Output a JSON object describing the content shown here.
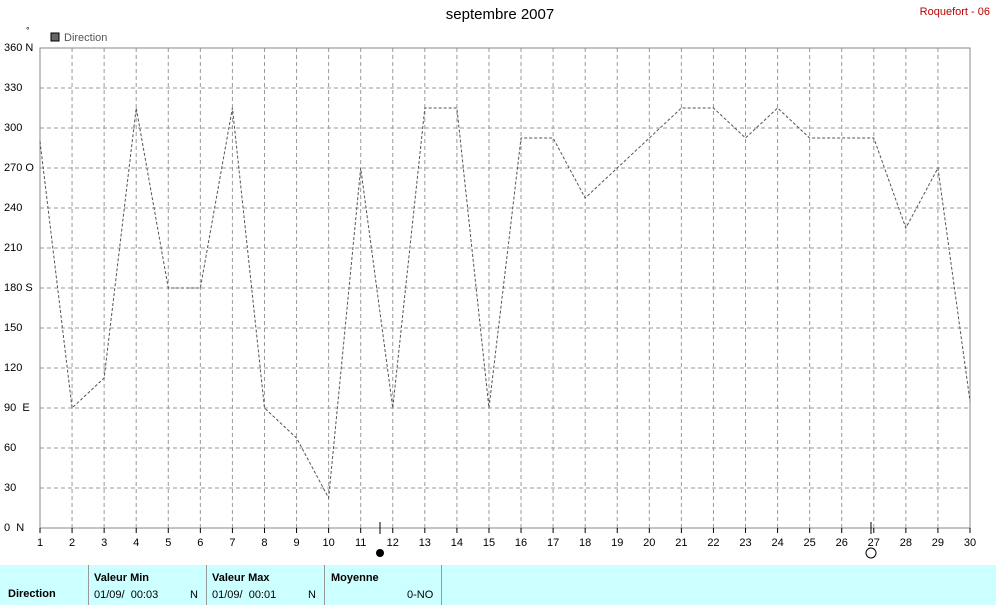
{
  "chart_data": {
    "type": "line",
    "title": "septembre 2007",
    "station": "Roquefort - 06",
    "unit_label": "°",
    "x": [
      1,
      2,
      3,
      4,
      5,
      6,
      7,
      8,
      9,
      10,
      11,
      12,
      13,
      14,
      15,
      16,
      17,
      18,
      19,
      20,
      21,
      22,
      23,
      24,
      25,
      26,
      27,
      28,
      29,
      30
    ],
    "xlim": [
      1,
      30
    ],
    "xticks": [
      1,
      2,
      3,
      4,
      5,
      6,
      7,
      8,
      9,
      10,
      11,
      12,
      13,
      14,
      15,
      16,
      17,
      18,
      19,
      20,
      21,
      22,
      23,
      24,
      25,
      26,
      27,
      28,
      29,
      30
    ],
    "ylim": [
      0,
      360
    ],
    "yticks": [
      {
        "value": 0,
        "label": "0  N"
      },
      30,
      60,
      {
        "value": 90,
        "label": "90  E"
      },
      120,
      150,
      {
        "value": 180,
        "label": "180 S"
      },
      210,
      240,
      {
        "value": 270,
        "label": "270 O"
      },
      300,
      330,
      {
        "value": 360,
        "label": "360 N"
      }
    ],
    "grid": true,
    "series": [
      {
        "name": "Direction",
        "color": "#555555",
        "values": [
          290,
          90,
          112.5,
          315,
          180,
          180,
          315,
          90,
          67.5,
          22.5,
          270,
          90,
          315,
          315,
          90,
          292.5,
          292.5,
          247.5,
          270,
          292.5,
          315,
          315,
          292.5,
          315,
          292.5,
          292.5,
          292.5,
          225,
          270,
          95
        ]
      }
    ]
  },
  "summary": {
    "row_label": "Direction",
    "min": {
      "title": "Valeur Min",
      "time": "01/09/  00:03",
      "dir": "N"
    },
    "max": {
      "title": "Valeur Max",
      "time": "01/09/  00:01",
      "dir": "N"
    },
    "mean": {
      "title": "Moyenne",
      "value": "0-NO"
    }
  }
}
